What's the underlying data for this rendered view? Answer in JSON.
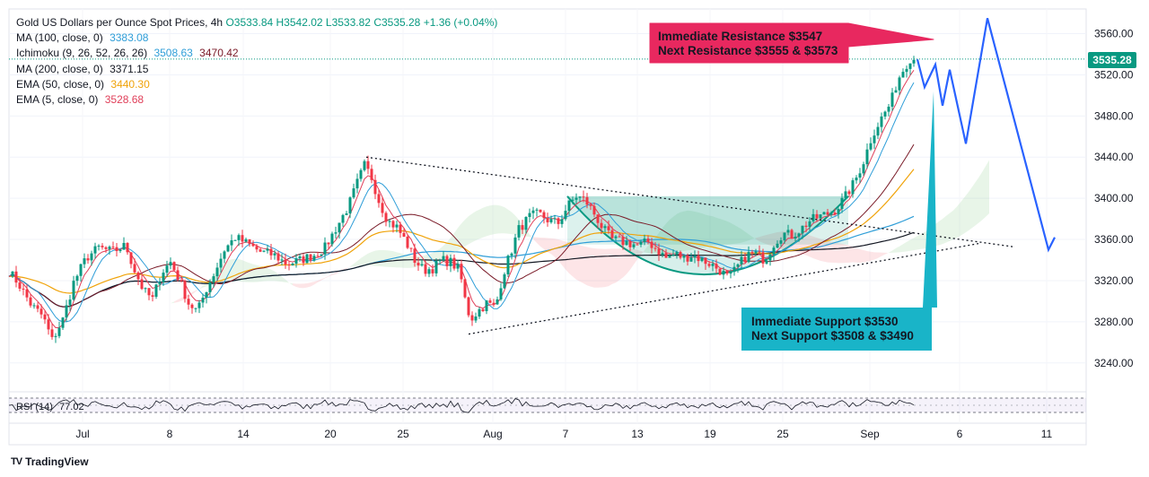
{
  "legend": {
    "title": "Gold US Dollars per Ounce Spot Prices, 4h",
    "ohlc": {
      "o": "O3533.84",
      "h": "H3542.02",
      "l": "L3533.82",
      "c": "C3535.28",
      "chg": "+1.36 (+0.04%)"
    },
    "indicators": [
      {
        "label": "MA (100, close, 0)",
        "value": "3383.08",
        "color": "#2f9ed8"
      },
      {
        "label": "Ichimoku (9, 26, 52, 26, 26)",
        "value": "3508.63",
        "value2": "3470.42",
        "color": "#2f9ed8",
        "color2": "#7a1b28"
      },
      {
        "label": "MA (200, close, 0)",
        "value": "3371.15",
        "color": "#131722"
      },
      {
        "label": "EMA (50, close, 0)",
        "value": "3440.30",
        "color": "#f0a30a"
      },
      {
        "label": "EMA (5, close, 0)",
        "value": "3528.68",
        "color": "#e0405a"
      }
    ]
  },
  "annotations": {
    "resistance_line1": "Immediate Resistance $3547",
    "resistance_line2": "Next Resistance $3555 & $3573",
    "support_line1": "Immediate Support $3530",
    "support_line2": "Next Support $3508 & $3490"
  },
  "price_tag": "3535.28",
  "rsi_label": "RSI (14)",
  "rsi_value": "77.02",
  "branding": "TradingView",
  "colors": {
    "up": "#089981",
    "down": "#f23645",
    "ma100": "#2f9ed8",
    "ma200": "#131722",
    "ema50": "#f0a30a",
    "ema5": "#e0405a",
    "kijun": "#7a1b28",
    "forecast": "#2962ff",
    "resistance_box": "#e8285f",
    "support_box": "#19b4c8"
  },
  "chart_data": {
    "type": "candlestick",
    "title": "Gold US Dollars per Ounce Spot Prices, 4h",
    "y_ticks": [
      3240,
      3280,
      3320,
      3360,
      3400,
      3440,
      3480,
      3520,
      3560
    ],
    "y_tick_labels": [
      "3240.00",
      "3280.00",
      "3320.00",
      "3360.00",
      "3400.00",
      "3440.00",
      "3480.00",
      "3520.00",
      "3560.00"
    ],
    "ylim": [
      3218,
      3584
    ],
    "x_ticks": [
      "Jul",
      "8",
      "14",
      "20",
      "25",
      "Aug",
      "7",
      "13",
      "19",
      "25",
      "Sep",
      "6",
      "11"
    ],
    "last_price": 3535.28,
    "price_path": [
      [
        0,
        3340
      ],
      [
        20,
        3318
      ],
      [
        35,
        3296
      ],
      [
        48,
        3285
      ],
      [
        58,
        3262
      ],
      [
        70,
        3282
      ],
      [
        82,
        3318
      ],
      [
        96,
        3342
      ],
      [
        110,
        3352
      ],
      [
        125,
        3348
      ],
      [
        140,
        3354
      ],
      [
        150,
        3330
      ],
      [
        160,
        3310
      ],
      [
        170,
        3302
      ],
      [
        180,
        3328
      ],
      [
        190,
        3338
      ],
      [
        200,
        3320
      ],
      [
        210,
        3298
      ],
      [
        220,
        3290
      ],
      [
        230,
        3312
      ],
      [
        240,
        3330
      ],
      [
        250,
        3350
      ],
      [
        262,
        3362
      ],
      [
        275,
        3356
      ],
      [
        290,
        3348
      ],
      [
        305,
        3345
      ],
      [
        320,
        3336
      ],
      [
        335,
        3340
      ],
      [
        350,
        3345
      ],
      [
        362,
        3352
      ],
      [
        375,
        3372
      ],
      [
        388,
        3392
      ],
      [
        398,
        3415
      ],
      [
        406,
        3432
      ],
      [
        414,
        3420
      ],
      [
        422,
        3398
      ],
      [
        432,
        3378
      ],
      [
        442,
        3372
      ],
      [
        452,
        3358
      ],
      [
        462,
        3340
      ],
      [
        472,
        3330
      ],
      [
        482,
        3332
      ],
      [
        492,
        3340
      ],
      [
        502,
        3338
      ],
      [
        512,
        3330
      ],
      [
        518,
        3302
      ],
      [
        524,
        3282
      ],
      [
        532,
        3290
      ],
      [
        542,
        3298
      ],
      [
        552,
        3294
      ],
      [
        560,
        3325
      ],
      [
        568,
        3345
      ],
      [
        578,
        3370
      ],
      [
        590,
        3382
      ],
      [
        600,
        3385
      ],
      [
        612,
        3378
      ],
      [
        622,
        3376
      ],
      [
        632,
        3392
      ],
      [
        642,
        3402
      ],
      [
        652,
        3398
      ],
      [
        662,
        3385
      ],
      [
        672,
        3370
      ],
      [
        682,
        3360
      ],
      [
        692,
        3358
      ],
      [
        702,
        3356
      ],
      [
        712,
        3354
      ],
      [
        722,
        3358
      ],
      [
        732,
        3350
      ],
      [
        742,
        3342
      ],
      [
        752,
        3346
      ],
      [
        762,
        3342
      ],
      [
        772,
        3345
      ],
      [
        782,
        3340
      ],
      [
        792,
        3336
      ],
      [
        802,
        3330
      ],
      [
        812,
        3322
      ],
      [
        822,
        3334
      ],
      [
        832,
        3345
      ],
      [
        842,
        3346
      ],
      [
        852,
        3340
      ],
      [
        862,
        3356
      ],
      [
        872,
        3366
      ],
      [
        882,
        3364
      ],
      [
        892,
        3370
      ],
      [
        902,
        3378
      ],
      [
        912,
        3382
      ],
      [
        922,
        3385
      ],
      [
        932,
        3390
      ],
      [
        942,
        3402
      ],
      [
        952,
        3416
      ],
      [
        962,
        3436
      ],
      [
        972,
        3462
      ],
      [
        982,
        3478
      ],
      [
        992,
        3492
      ],
      [
        1000,
        3515
      ],
      [
        1008,
        3528
      ],
      [
        1014,
        3536
      ],
      [
        1020,
        3535
      ]
    ],
    "series_overlays": [
      {
        "name": "MA (100, close, 0)",
        "last": 3383.08
      },
      {
        "name": "MA (200, close, 0)",
        "last": 3371.15
      },
      {
        "name": "EMA (50, close, 0)",
        "last": 3440.3
      },
      {
        "name": "EMA (5, close, 0)",
        "last": 3528.68
      },
      {
        "name": "Ichimoku conversion / base",
        "last": [
          3508.63,
          3470.42
        ]
      }
    ],
    "trendlines": [
      {
        "name": "descending-resistance",
        "from": [
          "Jul 22",
          3440
        ],
        "to": [
          "Sep 9",
          3350
        ]
      },
      {
        "name": "ascending-support",
        "from": [
          "Jul 30",
          3268
        ],
        "to": [
          "Sep 9",
          3355
        ]
      }
    ],
    "forecast_path": [
      3535,
      3508,
      3530,
      3490,
      3525,
      3453,
      3575,
      3350
    ],
    "rsi": {
      "label": "RSI (14)",
      "value": 77.02
    }
  }
}
